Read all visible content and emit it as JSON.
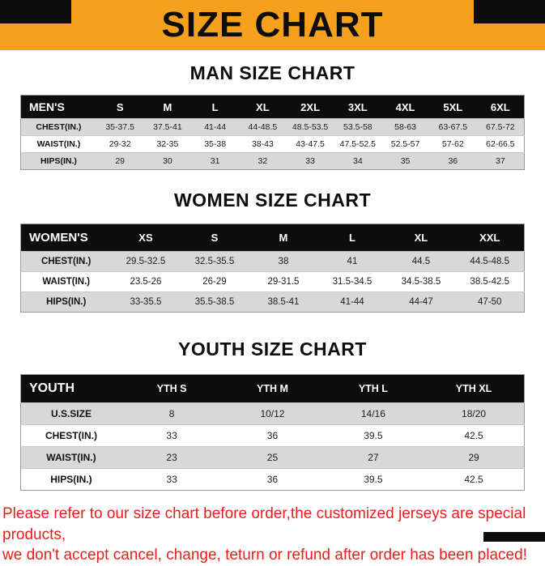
{
  "banner": {
    "title": "SIZE CHART"
  },
  "colors": {
    "banner_bg": "#F5A11B",
    "accent_black": "#0d0d0d",
    "table_header_bg": "#0d0d0d",
    "row_alt_gray": "#D8D8D8",
    "footer_red": "#ED1C1C"
  },
  "sections": [
    {
      "title": "MAN SIZE CHART",
      "header": [
        "MEN'S",
        "S",
        "M",
        "L",
        "XL",
        "2XL",
        "3XL",
        "4XL",
        "5XL",
        "6XL"
      ],
      "rows": [
        {
          "label": "CHEST(IN.)",
          "values": [
            "35-37.5",
            "37.5-41",
            "41-44",
            "44-48.5",
            "48.5-53.5",
            "53.5-58",
            "58-63",
            "63-67.5",
            "67.5-72"
          ]
        },
        {
          "label": "WAIST(IN.)",
          "values": [
            "29-32",
            "32-35",
            "35-38",
            "38-43",
            "43-47.5",
            "47.5-52.5",
            "52.5-57",
            "57-62",
            "62-66.5"
          ]
        },
        {
          "label": "HIPS(IN.)",
          "values": [
            "29",
            "30",
            "31",
            "32",
            "33",
            "34",
            "35",
            "36",
            "37"
          ]
        }
      ]
    },
    {
      "title": "WOMEN SIZE CHART",
      "header": [
        "WOMEN'S",
        "XS",
        "S",
        "M",
        "L",
        "XL",
        "XXL"
      ],
      "rows": [
        {
          "label": "CHEST(IN.)",
          "values": [
            "29.5-32.5",
            "32.5-35.5",
            "38",
            "41",
            "44.5",
            "44.5-48.5"
          ]
        },
        {
          "label": "WAIST(IN.)",
          "values": [
            "23.5-26",
            "26-29",
            "29-31.5",
            "31.5-34.5",
            "34.5-38.5",
            "38.5-42.5"
          ]
        },
        {
          "label": "HIPS(IN.)",
          "values": [
            "33-35.5",
            "35.5-38.5",
            "38.5-41",
            "41-44",
            "44-47",
            "47-50"
          ]
        }
      ]
    },
    {
      "title": "YOUTH SIZE CHART",
      "header": [
        "YOUTH",
        "YTH S",
        "YTH M",
        "YTH L",
        "YTH XL"
      ],
      "rows": [
        {
          "label": "U.S.SIZE",
          "values": [
            "8",
            "10/12",
            "14/16",
            "18/20"
          ]
        },
        {
          "label": "CHEST(IN.)",
          "values": [
            "33",
            "36",
            "39.5",
            "42.5"
          ]
        },
        {
          "label": "WAIST(IN.)",
          "values": [
            "23",
            "25",
            "27",
            "29"
          ]
        },
        {
          "label": "HIPS(IN.)",
          "values": [
            "33",
            "36",
            "39.5",
            "42.5"
          ]
        }
      ]
    }
  ],
  "footer": {
    "line1": "Please refer to our size chart before order,the customized jerseys are special products,",
    "line2": "we don't accept cancel, change, teturn or refund after order has been placed!"
  }
}
